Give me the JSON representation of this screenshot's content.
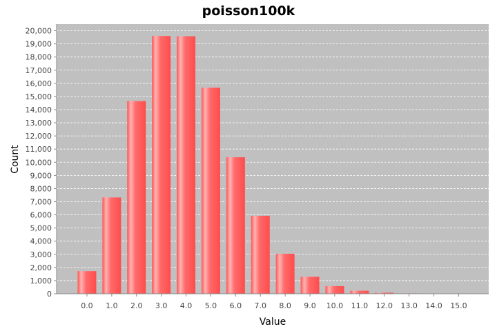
{
  "chart_data": {
    "type": "bar",
    "title": "poisson100k",
    "xlabel": "Value",
    "ylabel": "Count",
    "categories": [
      "0.0",
      "1.0",
      "2.0",
      "3.0",
      "4.0",
      "5.0",
      "6.0",
      "7.0",
      "8.0",
      "9.0",
      "10.0",
      "11.0",
      "12.0",
      "13.0",
      "14.0",
      "15.0"
    ],
    "values": [
      1720,
      7320,
      14650,
      19600,
      19580,
      15670,
      10380,
      5930,
      3040,
      1290,
      580,
      230,
      80,
      30,
      10,
      3
    ],
    "ylim": [
      0,
      20500
    ],
    "yticks": [
      0,
      1000,
      2000,
      3000,
      4000,
      5000,
      6000,
      7000,
      8000,
      9000,
      10000,
      11000,
      12000,
      13000,
      14000,
      15000,
      16000,
      17000,
      18000,
      19000,
      20000
    ],
    "ytick_labels": [
      "0",
      "1,000",
      "2,000",
      "3,000",
      "4,000",
      "5,000",
      "6,000",
      "7,000",
      "8,000",
      "9,000",
      "10,000",
      "11,000",
      "12,000",
      "13,000",
      "14,000",
      "15,000",
      "16,000",
      "17,000",
      "18,000",
      "19,000",
      "20,000"
    ],
    "grid": true,
    "colors": {
      "bar": "#ff5555",
      "bar_highlight": "#ffb0b0",
      "plot_bg": "#c0c0c0",
      "grid": "#ffffff"
    }
  }
}
